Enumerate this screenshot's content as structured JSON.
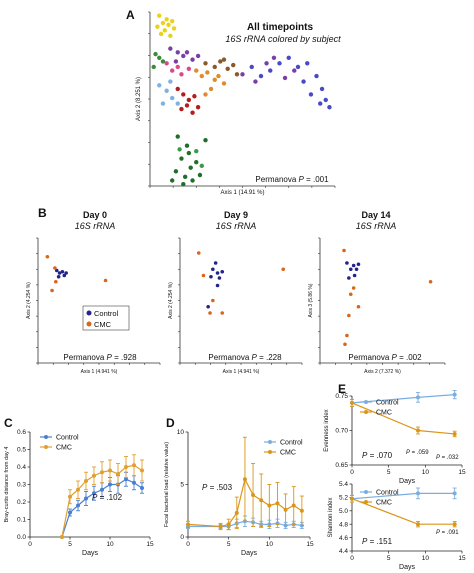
{
  "panel_labels": {
    "A": "A",
    "B": "B",
    "C": "C",
    "D": "D",
    "E": "E"
  },
  "colors": {
    "control": "#4a7fd0",
    "cmc": "#e0a030",
    "control_dot": "#22238c",
    "cmc_dot": "#d9661a"
  },
  "chart_data": [
    {
      "id": "A",
      "type": "scatter",
      "title": "All timepoints",
      "subtitle": "16S rRNA colored by subject",
      "xlabel": "Axis 1 (14.91 %)",
      "ylabel": "Axis 2 (8.251 %)",
      "annotation": "Permanova P = .001",
      "xlim": [
        -0.45,
        0.55
      ],
      "ylim": [
        -0.55,
        0.4
      ],
      "grid": false,
      "legend": "none",
      "series": [
        {
          "color": "#e8d21b",
          "points": [
            [
              -0.4,
              0.38
            ],
            [
              -0.36,
              0.36
            ],
            [
              -0.33,
              0.35
            ],
            [
              -0.38,
              0.34
            ],
            [
              -0.35,
              0.33
            ],
            [
              -0.41,
              0.32
            ],
            [
              -0.32,
              0.31
            ],
            [
              -0.37,
              0.3
            ],
            [
              -0.39,
              0.28
            ],
            [
              -0.34,
              0.27
            ]
          ]
        },
        {
          "color": "#7a3fa6",
          "points": [
            [
              -0.34,
              0.2
            ],
            [
              -0.3,
              0.18
            ],
            [
              -0.27,
              0.16
            ],
            [
              -0.25,
              0.18
            ],
            [
              -0.22,
              0.14
            ],
            [
              -0.31,
              0.13
            ],
            [
              -0.19,
              0.16
            ]
          ]
        },
        {
          "color": "#3a8c3a",
          "points": [
            [
              -0.42,
              0.17
            ],
            [
              -0.4,
              0.15
            ],
            [
              -0.38,
              0.13
            ],
            [
              -0.43,
              0.1
            ]
          ]
        },
        {
          "color": "#d94a8a",
          "points": [
            [
              -0.36,
              0.12
            ],
            [
              -0.33,
              0.08
            ],
            [
              -0.3,
              0.1
            ],
            [
              -0.28,
              0.06
            ],
            [
              -0.24,
              0.09
            ]
          ]
        },
        {
          "color": "#e08b2d",
          "points": [
            [
              -0.2,
              0.08
            ],
            [
              -0.17,
              0.05
            ],
            [
              -0.14,
              0.07
            ],
            [
              -0.1,
              0.03
            ],
            [
              -0.12,
              -0.02
            ],
            [
              -0.08,
              0.05
            ],
            [
              -0.05,
              0.01
            ],
            [
              -0.15,
              -0.05
            ]
          ]
        },
        {
          "color": "#8b5a2b",
          "points": [
            [
              -0.15,
              0.12
            ],
            [
              -0.1,
              0.1
            ],
            [
              -0.07,
              0.13
            ],
            [
              -0.03,
              0.09
            ],
            [
              0.0,
              0.11
            ],
            [
              -0.05,
              0.14
            ],
            [
              0.02,
              0.06
            ]
          ]
        },
        {
          "color": "#b51c1c",
          "points": [
            [
              -0.3,
              -0.02
            ],
            [
              -0.27,
              -0.05
            ],
            [
              -0.24,
              -0.08
            ],
            [
              -0.21,
              -0.06
            ],
            [
              -0.25,
              -0.11
            ],
            [
              -0.19,
              -0.12
            ],
            [
              -0.28,
              -0.13
            ],
            [
              -0.22,
              -0.15
            ]
          ]
        },
        {
          "color": "#7fb2e0",
          "points": [
            [
              -0.4,
              0.0
            ],
            [
              -0.36,
              -0.03
            ],
            [
              -0.33,
              -0.07
            ],
            [
              -0.38,
              -0.1
            ],
            [
              -0.34,
              0.02
            ],
            [
              -0.3,
              -0.1
            ]
          ]
        },
        {
          "color": "#4a4ac8",
          "points": [
            [
              0.1,
              0.1
            ],
            [
              0.15,
              0.05
            ],
            [
              0.2,
              0.08
            ],
            [
              0.25,
              0.12
            ],
            [
              0.3,
              0.15
            ],
            [
              0.35,
              0.1
            ],
            [
              0.4,
              0.12
            ],
            [
              0.45,
              0.05
            ],
            [
              0.38,
              0.02
            ],
            [
              0.42,
              -0.05
            ],
            [
              0.47,
              -0.1
            ],
            [
              0.5,
              -0.08
            ],
            [
              0.52,
              -0.12
            ],
            [
              0.48,
              -0.02
            ]
          ]
        },
        {
          "color": "#7a3fa6",
          "points": [
            [
              0.05,
              0.06
            ],
            [
              0.12,
              0.02
            ],
            [
              0.18,
              0.12
            ],
            [
              0.28,
              0.04
            ],
            [
              0.33,
              0.08
            ],
            [
              0.22,
              0.15
            ]
          ]
        },
        {
          "color": "#1f6e2a",
          "points": [
            [
              -0.3,
              -0.28
            ],
            [
              -0.25,
              -0.33
            ],
            [
              -0.28,
              -0.4
            ],
            [
              -0.23,
              -0.45
            ],
            [
              -0.2,
              -0.42
            ],
            [
              -0.31,
              -0.47
            ],
            [
              -0.26,
              -0.5
            ],
            [
              -0.22,
              -0.52
            ],
            [
              -0.18,
              -0.49
            ],
            [
              -0.27,
              -0.54
            ],
            [
              -0.33,
              -0.52
            ],
            [
              -0.15,
              -0.3
            ],
            [
              -0.24,
              -0.37
            ]
          ]
        },
        {
          "color": "#3a9c4a",
          "points": [
            [
              -0.2,
              -0.36
            ],
            [
              -0.29,
              -0.35
            ],
            [
              -0.17,
              -0.44
            ]
          ]
        }
      ]
    },
    {
      "id": "B0",
      "type": "scatter",
      "title": "Day 0",
      "subtitle": "16S rRNA",
      "xlabel": "Axis 1 (4.941 %)",
      "ylabel": "Axis 2 (4.254 %)",
      "annotation": "Permanova P = .928",
      "xlim": [
        -0.3,
        1.0
      ],
      "ylim": [
        -0.6,
        0.4
      ],
      "legend_entries": [
        "Control",
        "CMC"
      ],
      "series": [
        {
          "name": "Control",
          "color": "#22238c",
          "points": [
            [
              -0.1,
              0.14
            ],
            [
              -0.07,
              0.12
            ],
            [
              -0.04,
              0.13
            ],
            [
              -0.02,
              0.1
            ],
            [
              -0.08,
              0.09
            ],
            [
              0.0,
              0.12
            ]
          ]
        },
        {
          "name": "CMC",
          "color": "#d9661a",
          "points": [
            [
              -0.2,
              0.25
            ],
            [
              -0.12,
              0.16
            ],
            [
              -0.11,
              0.05
            ],
            [
              -0.15,
              -0.02
            ],
            [
              0.42,
              0.06
            ]
          ]
        }
      ]
    },
    {
      "id": "B9",
      "type": "scatter",
      "title": "Day 9",
      "subtitle": "16S rRNA",
      "xlabel": "Axis 1 (4.941 %)",
      "ylabel": "Axis 2 (4.254 %)",
      "annotation": "Permanova P = .228",
      "xlim": [
        -0.3,
        1.0
      ],
      "ylim": [
        -0.6,
        0.4
      ],
      "series": [
        {
          "name": "Control",
          "color": "#22238c",
          "points": [
            [
              0.05,
              0.15
            ],
            [
              0.1,
              0.12
            ],
            [
              0.12,
              0.08
            ],
            [
              0.08,
              0.2
            ],
            [
              0.15,
              0.13
            ],
            [
              0.03,
              0.09
            ],
            [
              0.1,
              0.02
            ],
            [
              0.0,
              -0.15
            ]
          ]
        },
        {
          "name": "CMC",
          "color": "#d9661a",
          "points": [
            [
              -0.1,
              0.28
            ],
            [
              -0.05,
              0.1
            ],
            [
              0.05,
              -0.1
            ],
            [
              0.02,
              -0.2
            ],
            [
              0.15,
              -0.2
            ],
            [
              0.8,
              0.15
            ]
          ]
        }
      ]
    },
    {
      "id": "B14",
      "type": "scatter",
      "title": "Day 14",
      "subtitle": "16S rRNA",
      "xlabel": "Axis 2 (7.372 %)",
      "ylabel": "Axis 3 (5.86 %)",
      "annotation": "Permanova P = .002",
      "xlim": [
        -0.3,
        1.0
      ],
      "ylim": [
        -0.6,
        0.4
      ],
      "series": [
        {
          "name": "Control",
          "color": "#22238c",
          "points": [
            [
              -0.02,
              0.2
            ],
            [
              0.02,
              0.15
            ],
            [
              0.05,
              0.18
            ],
            [
              0.08,
              0.15
            ],
            [
              0.1,
              0.19
            ],
            [
              0.0,
              0.08
            ],
            [
              0.06,
              0.1
            ]
          ]
        },
        {
          "name": "CMC",
          "color": "#d9661a",
          "points": [
            [
              -0.05,
              0.3
            ],
            [
              0.05,
              0.0
            ],
            [
              0.02,
              -0.05
            ],
            [
              0.0,
              -0.22
            ],
            [
              -0.02,
              -0.38
            ],
            [
              -0.04,
              -0.45
            ],
            [
              0.1,
              -0.15
            ],
            [
              0.85,
              0.05
            ]
          ]
        }
      ]
    },
    {
      "id": "C",
      "type": "line",
      "xlabel": "Days",
      "ylabel": "Bray-curtis distance from day 4",
      "annotation": "P = .102",
      "xlim": [
        0,
        15
      ],
      "ylim": [
        0,
        0.6
      ],
      "xticks": [
        0,
        5,
        10,
        15
      ],
      "yticks": [
        0.0,
        0.1,
        0.2,
        0.3,
        0.4,
        0.5,
        0.6
      ],
      "legend_entries": [
        "Control",
        "CMC"
      ],
      "series": [
        {
          "name": "Control",
          "color": "#4a7fd0",
          "x": [
            4,
            5,
            6,
            7,
            8,
            9,
            10,
            11,
            12,
            13,
            14
          ],
          "y": [
            0.0,
            0.14,
            0.18,
            0.22,
            0.25,
            0.27,
            0.3,
            0.3,
            0.33,
            0.31,
            0.28
          ],
          "err": [
            0,
            0.02,
            0.03,
            0.04,
            0.04,
            0.04,
            0.04,
            0.05,
            0.04,
            0.04,
            0.03
          ]
        },
        {
          "name": "CMC",
          "color": "#e0a030",
          "x": [
            4,
            5,
            6,
            7,
            8,
            9,
            10,
            11,
            12,
            13,
            14
          ],
          "y": [
            0.0,
            0.23,
            0.27,
            0.32,
            0.35,
            0.37,
            0.38,
            0.36,
            0.4,
            0.41,
            0.38
          ],
          "err": [
            0,
            0.04,
            0.05,
            0.05,
            0.05,
            0.06,
            0.06,
            0.06,
            0.06,
            0.06,
            0.06
          ]
        }
      ]
    },
    {
      "id": "D",
      "type": "line",
      "xlabel": "Days",
      "ylabel": "Fecal bacterial load (relative value)",
      "annotation": "P = .503",
      "xlim": [
        0,
        15
      ],
      "ylim": [
        0,
        10
      ],
      "xticks": [
        0,
        5,
        10,
        15
      ],
      "yticks": [
        0,
        5,
        10
      ],
      "legend_entries": [
        "Control",
        "CMC"
      ],
      "series": [
        {
          "name": "Control",
          "color": "#7aaee0",
          "x": [
            0,
            4,
            5,
            6,
            7,
            8,
            9,
            10,
            11,
            12,
            13,
            14
          ],
          "y": [
            1.0,
            1.0,
            1.0,
            1.3,
            1.5,
            1.4,
            1.2,
            1.2,
            1.3,
            1.1,
            1.2,
            1.1
          ],
          "err": [
            0.2,
            0.2,
            0.3,
            0.4,
            0.5,
            0.4,
            0.3,
            0.4,
            0.4,
            0.3,
            0.3,
            0.3
          ]
        },
        {
          "name": "CMC",
          "color": "#d9961a",
          "x": [
            0,
            4,
            5,
            6,
            7,
            8,
            9,
            10,
            11,
            12,
            13,
            14
          ],
          "y": [
            1.2,
            1.0,
            1.2,
            2.3,
            5.5,
            4.0,
            3.5,
            3.0,
            3.2,
            2.6,
            3.0,
            2.5
          ],
          "err": [
            0.3,
            0.3,
            0.5,
            1.5,
            4.0,
            3.0,
            2.5,
            2.0,
            2.0,
            1.5,
            1.8,
            1.4
          ]
        }
      ]
    },
    {
      "id": "E1",
      "type": "line",
      "xlabel": "Days",
      "ylabel": "Evenness index",
      "annotation": "P = .070",
      "point_annotations": [
        "P = .059",
        "P = .032"
      ],
      "xlim": [
        0,
        15
      ],
      "ylim": [
        0.65,
        0.75
      ],
      "xticks": [
        0,
        5,
        10,
        15
      ],
      "yticks": [
        0.65,
        0.7,
        0.75
      ],
      "legend_entries": [
        "Control",
        "CMC"
      ],
      "series": [
        {
          "name": "Control",
          "color": "#7aaee0",
          "x": [
            0,
            9,
            14
          ],
          "y": [
            0.74,
            0.748,
            0.752
          ],
          "err": [
            0.005,
            0.007,
            0.006
          ]
        },
        {
          "name": "CMC",
          "color": "#d9961a",
          "x": [
            0,
            9,
            14
          ],
          "y": [
            0.74,
            0.7,
            0.695
          ],
          "err": [
            0.005,
            0.005,
            0.004
          ]
        }
      ]
    },
    {
      "id": "E2",
      "type": "line",
      "xlabel": "Days",
      "ylabel": "Shannon index",
      "annotation": "P = .151",
      "point_annotations": [
        "P = .091"
      ],
      "xlim": [
        0,
        15
      ],
      "ylim": [
        4.4,
        5.4
      ],
      "xticks": [
        0,
        5,
        10,
        15
      ],
      "yticks": [
        4.4,
        4.6,
        4.8,
        5.0,
        5.2,
        5.4
      ],
      "legend_entries": [
        "Control",
        "CMC"
      ],
      "series": [
        {
          "name": "Control",
          "color": "#7aaee0",
          "x": [
            0,
            9,
            14
          ],
          "y": [
            5.18,
            5.26,
            5.26
          ],
          "err": [
            0.05,
            0.08,
            0.08
          ]
        },
        {
          "name": "CMC",
          "color": "#d9961a",
          "x": [
            0,
            9,
            14
          ],
          "y": [
            5.18,
            4.8,
            4.8
          ],
          "err": [
            0.05,
            0.04,
            0.04
          ]
        }
      ]
    }
  ]
}
